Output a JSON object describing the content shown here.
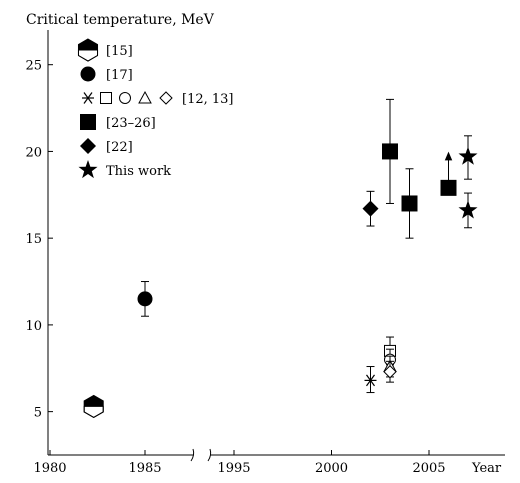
{
  "chart_data": {
    "type": "scatter",
    "title": "",
    "ylabel": "Critical temperature, MeV",
    "xlabel": "Year",
    "ylim": [
      2.5,
      27
    ],
    "y_ticks": [
      5,
      10,
      15,
      20,
      25
    ],
    "x_ticks": [
      1980,
      1985,
      1995,
      2000,
      2005
    ],
    "x_segments": [
      [
        1980,
        1987.5
      ],
      [
        1992.5,
        2008.5
      ]
    ],
    "legend_placement": "top-left",
    "series": [
      {
        "name": "[15]",
        "marker": "half-hexagon",
        "points": [
          {
            "x": 1982.3,
            "y": 5.3
          }
        ]
      },
      {
        "name": "[17]",
        "marker": "circle-filled",
        "points": [
          {
            "x": 1985,
            "y": 11.5,
            "err_low": 1.0,
            "err_high": 1.0
          }
        ]
      },
      {
        "name": "[12, 13]",
        "marker": "open-set",
        "points": [
          {
            "x": 2002,
            "y": 6.8,
            "shape": "asterisk",
            "err_low": 0.7,
            "err_high": 0.8
          },
          {
            "x": 2003,
            "y": 8.5,
            "shape": "square-open",
            "err_low": 0.8,
            "err_high": 0.8
          },
          {
            "x": 2003,
            "y": 8.0,
            "shape": "circle-open",
            "err_low": 0.6,
            "err_high": 0.6
          },
          {
            "x": 2003,
            "y": 7.6,
            "shape": "triangle-open",
            "err_low": 0.6,
            "err_high": 0.6
          },
          {
            "x": 2003,
            "y": 7.3,
            "shape": "diamond-open",
            "err_low": 0.6,
            "err_high": 0.6
          }
        ]
      },
      {
        "name": "[23–26]",
        "marker": "square-filled",
        "points": [
          {
            "x": 2003,
            "y": 20.0,
            "err_low": 3.0,
            "err_high": 3.0
          },
          {
            "x": 2004,
            "y": 17.0,
            "err_low": 2.0,
            "err_high": 2.0
          },
          {
            "x": 2006,
            "y": 17.9,
            "err_high": 1.9,
            "lower_limit": true
          }
        ]
      },
      {
        "name": "[22]",
        "marker": "diamond-filled",
        "points": [
          {
            "x": 2002,
            "y": 16.7,
            "err_low": 1.0,
            "err_high": 1.0
          }
        ]
      },
      {
        "name": "This work",
        "marker": "star-filled",
        "points": [
          {
            "x": 2007,
            "y": 19.7,
            "err_low": 1.3,
            "err_high": 1.2
          },
          {
            "x": 2007,
            "y": 16.6,
            "err_low": 1.0,
            "err_high": 1.0
          }
        ]
      }
    ]
  }
}
